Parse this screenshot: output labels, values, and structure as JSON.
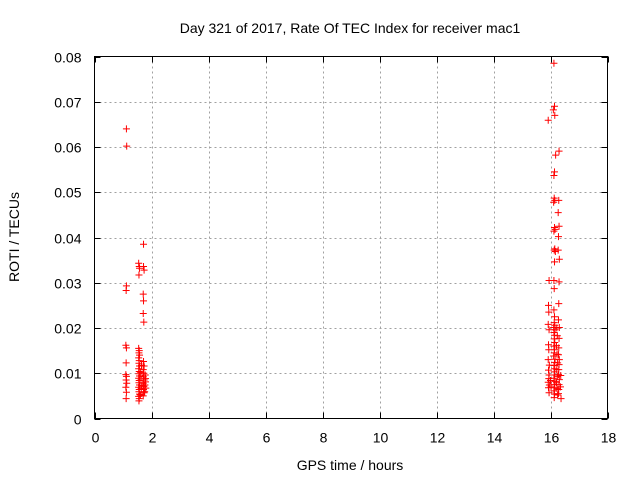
{
  "chart_data": {
    "type": "scatter",
    "title": "Day 321 of 2017, Rate Of TEC Index for receiver mac1",
    "xlabel": "GPS time / hours",
    "ylabel": "ROTI / TECUs",
    "xlim": [
      0,
      18
    ],
    "ylim": [
      0,
      0.08
    ],
    "xticks": [
      0,
      2,
      4,
      6,
      8,
      10,
      12,
      14,
      16,
      18
    ],
    "yticks": [
      0,
      0.01,
      0.02,
      0.03,
      0.04,
      0.05,
      0.06,
      0.07,
      0.08
    ],
    "xtick_labels": [
      "0",
      "2",
      "4",
      "6",
      "8",
      "10",
      "12",
      "14",
      "16",
      "18"
    ],
    "ytick_labels": [
      "0",
      "0.01",
      "0.02",
      "0.03",
      "0.04",
      "0.05",
      "0.06",
      "0.07",
      "0.08"
    ],
    "grid": true,
    "marker": "+",
    "color": "#ff0000",
    "series": [
      {
        "name": "ROTI",
        "points": [
          [
            1.12,
            0.064
          ],
          [
            1.13,
            0.0602
          ],
          [
            1.12,
            0.0293
          ],
          [
            1.11,
            0.0283
          ],
          [
            1.1,
            0.0162
          ],
          [
            1.12,
            0.0156
          ],
          [
            1.11,
            0.0123
          ],
          [
            1.1,
            0.0097
          ],
          [
            1.12,
            0.0093
          ],
          [
            1.11,
            0.0085
          ],
          [
            1.13,
            0.0078
          ],
          [
            1.1,
            0.0069
          ],
          [
            1.12,
            0.0058
          ],
          [
            1.11,
            0.0044
          ],
          [
            1.55,
            0.0343
          ],
          [
            1.57,
            0.0336
          ],
          [
            1.58,
            0.0332
          ],
          [
            1.56,
            0.0317
          ],
          [
            1.55,
            0.0155
          ],
          [
            1.57,
            0.015
          ],
          [
            1.56,
            0.0145
          ],
          [
            1.58,
            0.014
          ],
          [
            1.55,
            0.0134
          ],
          [
            1.57,
            0.0128
          ],
          [
            1.56,
            0.0122
          ],
          [
            1.58,
            0.0116
          ],
          [
            1.55,
            0.011
          ],
          [
            1.57,
            0.0104
          ],
          [
            1.56,
            0.0099
          ],
          [
            1.58,
            0.0094
          ],
          [
            1.55,
            0.0089
          ],
          [
            1.57,
            0.0084
          ],
          [
            1.56,
            0.0079
          ],
          [
            1.58,
            0.0074
          ],
          [
            1.55,
            0.0069
          ],
          [
            1.57,
            0.0064
          ],
          [
            1.56,
            0.0059
          ],
          [
            1.58,
            0.0054
          ],
          [
            1.55,
            0.0049
          ],
          [
            1.57,
            0.0044
          ],
          [
            1.56,
            0.0039
          ],
          [
            1.62,
            0.0102
          ],
          [
            1.63,
            0.0085
          ],
          [
            1.64,
            0.0066
          ],
          [
            1.61,
            0.0052
          ],
          [
            1.65,
            0.0118
          ],
          [
            1.66,
            0.0072
          ],
          [
            1.72,
            0.0385
          ],
          [
            1.72,
            0.0336
          ],
          [
            1.74,
            0.0328
          ],
          [
            1.71,
            0.0275
          ],
          [
            1.72,
            0.026
          ],
          [
            1.71,
            0.0232
          ],
          [
            1.73,
            0.0213
          ],
          [
            1.72,
            0.0126
          ],
          [
            1.74,
            0.0116
          ],
          [
            1.71,
            0.0108
          ],
          [
            1.73,
            0.01
          ],
          [
            1.72,
            0.0092
          ],
          [
            1.74,
            0.0085
          ],
          [
            1.71,
            0.0078
          ],
          [
            1.73,
            0.0071
          ],
          [
            1.72,
            0.0064
          ],
          [
            1.74,
            0.0057
          ],
          [
            1.71,
            0.005
          ],
          [
            1.78,
            0.0096
          ],
          [
            1.79,
            0.0081
          ],
          [
            1.8,
            0.0067
          ],
          [
            1.77,
            0.0074
          ],
          [
            1.76,
            0.0059
          ],
          [
            1.79,
            0.0088
          ],
          [
            15.92,
            0.0659
          ],
          [
            15.95,
            0.0305
          ],
          [
            15.93,
            0.025
          ],
          [
            15.94,
            0.0235
          ],
          [
            15.92,
            0.0208
          ],
          [
            15.95,
            0.0196
          ],
          [
            15.93,
            0.0163
          ],
          [
            15.94,
            0.0152
          ],
          [
            15.92,
            0.013
          ],
          [
            15.96,
            0.0118
          ],
          [
            15.93,
            0.0107
          ],
          [
            15.95,
            0.0096
          ],
          [
            15.94,
            0.0088
          ],
          [
            15.92,
            0.008
          ],
          [
            15.96,
            0.0074
          ],
          [
            15.93,
            0.0068
          ],
          [
            15.95,
            0.0057
          ],
          [
            16.0,
            0.0084
          ],
          [
            16.02,
            0.007
          ],
          [
            16.12,
            0.0785
          ],
          [
            16.14,
            0.069
          ],
          [
            16.1,
            0.0682
          ],
          [
            16.15,
            0.067
          ],
          [
            16.18,
            0.0582
          ],
          [
            16.14,
            0.0545
          ],
          [
            16.12,
            0.0537
          ],
          [
            16.13,
            0.0487
          ],
          [
            16.15,
            0.0482
          ],
          [
            16.11,
            0.0478
          ],
          [
            16.14,
            0.0422
          ],
          [
            16.16,
            0.0418
          ],
          [
            16.12,
            0.0414
          ],
          [
            16.15,
            0.0375
          ],
          [
            16.13,
            0.0372
          ],
          [
            16.17,
            0.0369
          ],
          [
            16.14,
            0.0346
          ],
          [
            16.12,
            0.0305
          ],
          [
            16.13,
            0.0287
          ],
          [
            16.12,
            0.024
          ],
          [
            16.14,
            0.0225
          ],
          [
            16.13,
            0.0212
          ],
          [
            16.15,
            0.0206
          ],
          [
            16.11,
            0.0201
          ],
          [
            16.16,
            0.0196
          ],
          [
            16.12,
            0.019
          ],
          [
            16.14,
            0.0184
          ],
          [
            16.13,
            0.0176
          ],
          [
            16.15,
            0.0168
          ],
          [
            16.12,
            0.016
          ],
          [
            16.14,
            0.0152
          ],
          [
            16.13,
            0.0145
          ],
          [
            16.11,
            0.0138
          ],
          [
            16.16,
            0.0131
          ],
          [
            16.14,
            0.0124
          ],
          [
            16.12,
            0.0117
          ],
          [
            16.15,
            0.011
          ],
          [
            16.13,
            0.0103
          ],
          [
            16.14,
            0.0096
          ],
          [
            16.12,
            0.0089
          ],
          [
            16.16,
            0.0082
          ],
          [
            16.13,
            0.0075
          ],
          [
            16.15,
            0.0068
          ],
          [
            16.12,
            0.0061
          ],
          [
            16.14,
            0.0054
          ],
          [
            16.13,
            0.0046
          ],
          [
            16.22,
            0.02
          ],
          [
            16.24,
            0.0183
          ],
          [
            16.21,
            0.0161
          ],
          [
            16.23,
            0.0142
          ],
          [
            16.25,
            0.0123
          ],
          [
            16.22,
            0.0108
          ],
          [
            16.24,
            0.0093
          ],
          [
            16.21,
            0.0079
          ],
          [
            16.23,
            0.0066
          ],
          [
            16.25,
            0.0052
          ],
          [
            16.3,
            0.0591
          ],
          [
            16.29,
            0.0482
          ],
          [
            16.27,
            0.0455
          ],
          [
            16.3,
            0.0425
          ],
          [
            16.28,
            0.0402
          ],
          [
            16.27,
            0.0372
          ],
          [
            16.31,
            0.0352
          ],
          [
            16.3,
            0.0302
          ],
          [
            16.29,
            0.0254
          ],
          [
            16.28,
            0.0218
          ],
          [
            16.31,
            0.0201
          ],
          [
            16.3,
            0.0177
          ],
          [
            16.29,
            0.0156
          ],
          [
            16.28,
            0.0141
          ],
          [
            16.31,
            0.013
          ],
          [
            16.3,
            0.0119
          ],
          [
            16.29,
            0.0108
          ],
          [
            16.28,
            0.0097
          ],
          [
            16.31,
            0.0086
          ],
          [
            16.3,
            0.0075
          ],
          [
            16.29,
            0.0064
          ],
          [
            16.28,
            0.0055
          ],
          [
            16.36,
            0.0095
          ],
          [
            16.35,
            0.007
          ],
          [
            16.37,
            0.0044
          ]
        ]
      }
    ]
  }
}
